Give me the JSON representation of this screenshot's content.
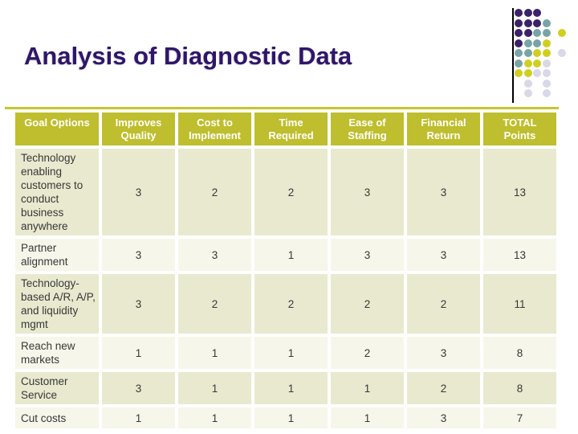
{
  "slide": {
    "title": "Analysis of Diagnostic Data",
    "colors": {
      "title": "#2F1668",
      "rule": "#C6C62C",
      "line": "#000000",
      "header_bg": "#BEBE2E",
      "header_text": "#FFFFFF",
      "row_dark": "#E9E9CF",
      "row_light": "#F6F6EA",
      "body_text": "#383838",
      "dot_purple": "#3A2169",
      "dot_teal": "#77A4A4",
      "dot_yellow": "#CFCF20",
      "dot_gray": "#D8D8E6"
    }
  },
  "table": {
    "columns": [
      "Goal Options",
      "Improves Quality",
      "Cost to Implement",
      "Time Required",
      "Ease of Staffing",
      "Financial Return",
      "TOTAL Points"
    ],
    "rows": [
      {
        "label": "Technology enabling customers to conduct business anywhere",
        "values": [
          3,
          2,
          2,
          3,
          3,
          13
        ]
      },
      {
        "label": "Partner alignment",
        "values": [
          3,
          3,
          1,
          3,
          3,
          13
        ]
      },
      {
        "label": "Technology-based A/R, A/P, and liquidity mgmt",
        "values": [
          3,
          2,
          2,
          2,
          2,
          11
        ]
      },
      {
        "label": "Reach new markets",
        "values": [
          1,
          1,
          1,
          2,
          3,
          8
        ]
      },
      {
        "label": "Customer Service",
        "values": [
          3,
          1,
          1,
          1,
          2,
          8
        ]
      },
      {
        "label": "Cut costs",
        "values": [
          1,
          1,
          1,
          1,
          3,
          7
        ]
      }
    ]
  },
  "decoration": {
    "dot_grid": [
      "PPP..",
      "PPPT.",
      "PPTTY",
      "PTTY.",
      "TTYYG",
      "TYYG.",
      "YYGG.",
      ".G.G.",
      ".G.G."
    ]
  }
}
